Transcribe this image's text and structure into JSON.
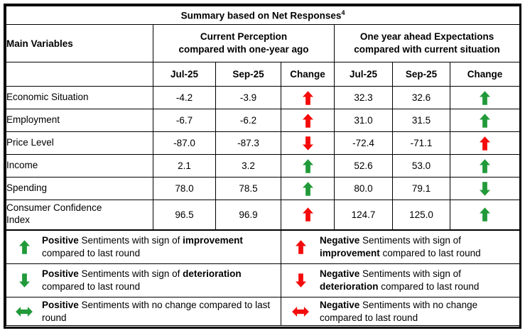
{
  "title": {
    "text": "Summary based on Net Responses",
    "superscript": "4"
  },
  "colors": {
    "green": "#219a3a",
    "red": "#f40b0b",
    "border": "#000000"
  },
  "header": {
    "main_variables": "Main Variables",
    "group1": "Current Perception\ncompared with one-year ago",
    "group2": "One year ahead Expectations\ncompared with current situation",
    "subcolumns": [
      "Jul-25",
      "Sep-25",
      "Change",
      "Jul-25",
      "Sep-25",
      "Change"
    ]
  },
  "rows": [
    {
      "label": "Economic Situation",
      "jul1": "-4.2",
      "sep1": "-3.9",
      "change1": {
        "dir": "up",
        "color": "red"
      },
      "jul2": "32.3",
      "sep2": "32.6",
      "change2": {
        "dir": "up",
        "color": "green"
      }
    },
    {
      "label": "Employment",
      "jul1": "-6.7",
      "sep1": "-6.2",
      "change1": {
        "dir": "up",
        "color": "red"
      },
      "jul2": "31.0",
      "sep2": "31.5",
      "change2": {
        "dir": "up",
        "color": "green"
      }
    },
    {
      "label": "Price Level",
      "jul1": "-87.0",
      "sep1": "-87.3",
      "change1": {
        "dir": "down",
        "color": "red"
      },
      "jul2": "-72.4",
      "sep2": "-71.1",
      "change2": {
        "dir": "up",
        "color": "red"
      }
    },
    {
      "label": "Income",
      "jul1": "2.1",
      "sep1": "3.2",
      "change1": {
        "dir": "up",
        "color": "green"
      },
      "jul2": "52.6",
      "sep2": "53.0",
      "change2": {
        "dir": "up",
        "color": "green"
      }
    },
    {
      "label": "Spending",
      "jul1": "78.0",
      "sep1": "78.5",
      "change1": {
        "dir": "up",
        "color": "green"
      },
      "jul2": "80.0",
      "sep2": "79.1",
      "change2": {
        "dir": "down",
        "color": "green"
      }
    },
    {
      "label": "Consumer Confidence\nIndex",
      "jul1": "96.5",
      "sep1": "96.9",
      "change1": {
        "dir": "up",
        "color": "red"
      },
      "jul2": "124.7",
      "sep2": "125.0",
      "change2": {
        "dir": "up",
        "color": "green"
      }
    }
  ],
  "legend": [
    {
      "left": {
        "arrow": {
          "dir": "up",
          "color": "green"
        },
        "segments": [
          {
            "text": "Positive",
            "bold": true
          },
          {
            "text": " Sentiments with sign of ",
            "bold": false
          },
          {
            "text": "improvement",
            "bold": true
          },
          {
            "text": " compared to last round",
            "bold": false
          }
        ]
      },
      "right": {
        "arrow": {
          "dir": "up",
          "color": "red"
        },
        "segments": [
          {
            "text": "Negative",
            "bold": true
          },
          {
            "text": " Sentiments with sign of ",
            "bold": false
          },
          {
            "text": "improvement",
            "bold": true
          },
          {
            "text": " compared to last round",
            "bold": false
          }
        ]
      }
    },
    {
      "left": {
        "arrow": {
          "dir": "down",
          "color": "green"
        },
        "segments": [
          {
            "text": "Positive",
            "bold": true
          },
          {
            "text": " Sentiments with sign of ",
            "bold": false
          },
          {
            "text": "deterioration",
            "bold": true
          },
          {
            "text": " compared to last round",
            "bold": false
          }
        ]
      },
      "right": {
        "arrow": {
          "dir": "down",
          "color": "red"
        },
        "segments": [
          {
            "text": "Negative",
            "bold": true
          },
          {
            "text": " Sentiments with sign of ",
            "bold": false
          },
          {
            "text": "deterioration",
            "bold": true
          },
          {
            "text": " compared to last round",
            "bold": false
          }
        ]
      }
    },
    {
      "left": {
        "arrow": {
          "dir": "left-right",
          "color": "green"
        },
        "segments": [
          {
            "text": "Positive",
            "bold": true
          },
          {
            "text": " Sentiments with no change compared to last round",
            "bold": false
          }
        ]
      },
      "right": {
        "arrow": {
          "dir": "left-right",
          "color": "red"
        },
        "segments": [
          {
            "text": "Negative",
            "bold": true
          },
          {
            "text": " Sentiments with no change compared to last round",
            "bold": false
          }
        ]
      }
    }
  ]
}
